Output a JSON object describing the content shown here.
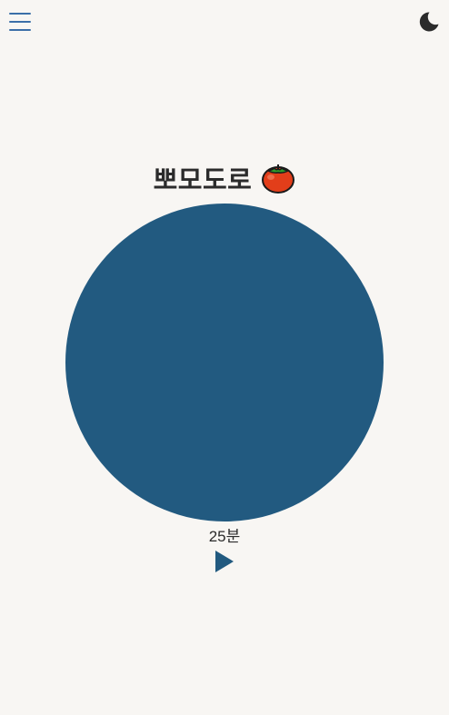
{
  "header": {
    "menu_icon": "hamburger-menu-icon",
    "theme_icon": "moon-icon"
  },
  "main": {
    "title": "뽀모도로",
    "title_icon": "tomato-icon",
    "duration_label": "25분",
    "play_icon": "play-icon"
  },
  "colors": {
    "background": "#f8f6f3",
    "timer_circle": "#225a80",
    "menu_icon": "#3b6fa8",
    "play_icon": "#225a80",
    "moon_icon": "#2b2b2b",
    "text": "#2b2b2b",
    "tomato": "#e23e1a"
  }
}
